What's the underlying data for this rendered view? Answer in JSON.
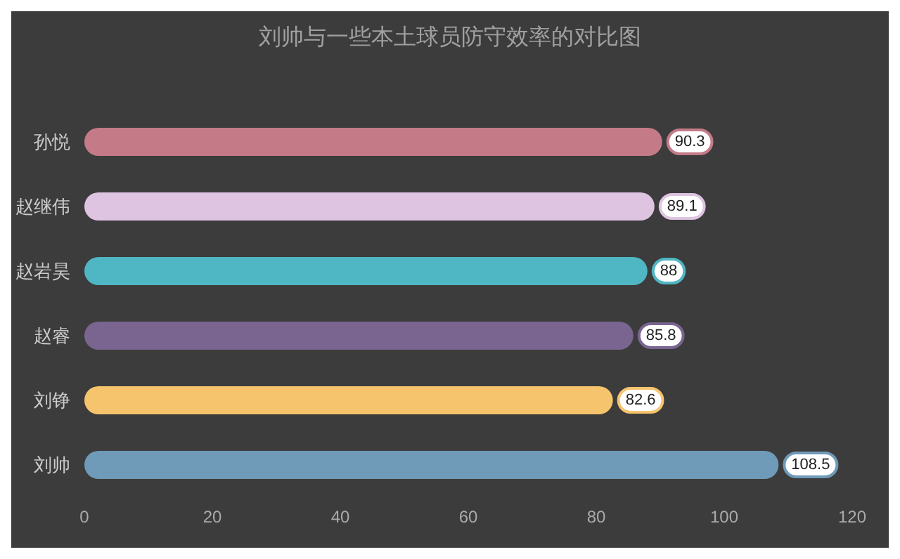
{
  "chart_data": {
    "type": "bar",
    "orientation": "horizontal",
    "title": "刘帅与一些本土球员防守效率的对比图",
    "categories": [
      "孙悦",
      "赵继伟",
      "赵岩昊",
      "赵睿",
      "刘铮",
      "刘帅"
    ],
    "values": [
      90.3,
      89.1,
      88,
      85.8,
      82.6,
      108.5
    ],
    "colors": [
      "#c47a87",
      "#dfc4e2",
      "#4fb6c4",
      "#79658f",
      "#f7c46e",
      "#6f9ab8"
    ],
    "xlim": [
      0,
      120
    ],
    "xticks": [
      0,
      20,
      40,
      60,
      80,
      100,
      120
    ],
    "grid": false,
    "data_labels": true
  }
}
